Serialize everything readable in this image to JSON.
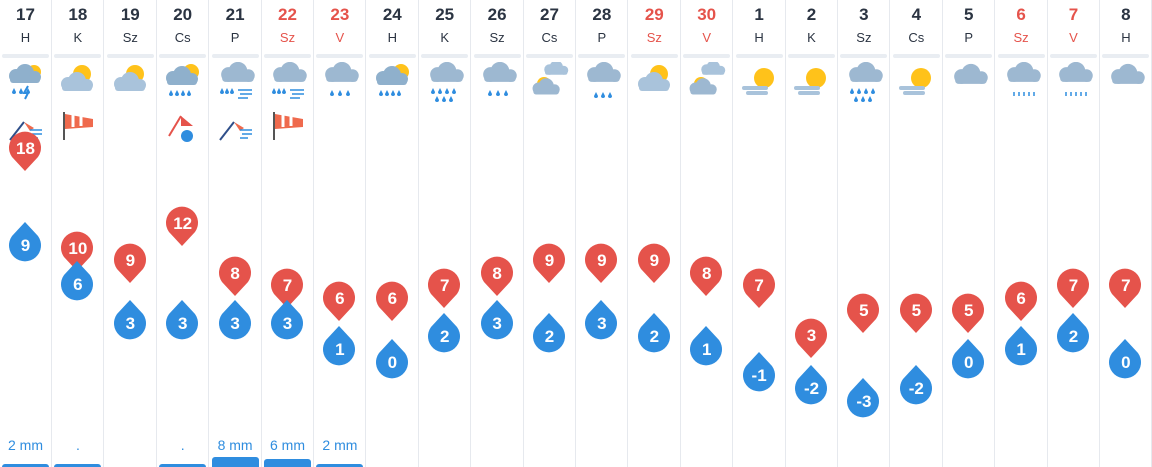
{
  "app": {
    "colors": {
      "high": "#e5534b",
      "low": "#2f8ddf",
      "weekend": "#e5534b",
      "text": "#2b3442"
    }
  },
  "days": [
    {
      "num": "17",
      "name": "H",
      "weekend": false,
      "icon": "thunderstorm-rain",
      "wind": "windsock-strong-wind-icon",
      "high": "18",
      "low": "9",
      "precip": "2 mm",
      "bar": 0.15
    },
    {
      "num": "18",
      "name": "K",
      "weekend": false,
      "icon": "partly-sunny",
      "wind": "windsock-icon",
      "high": "10",
      "low": "6",
      "precip": ".",
      "bar": 0.15
    },
    {
      "num": "19",
      "name": "Sz",
      "weekend": false,
      "icon": "partly-sunny",
      "wind": "",
      "high": "9",
      "low": "3",
      "precip": "",
      "bar": 0
    },
    {
      "num": "20",
      "name": "Cs",
      "weekend": false,
      "icon": "sun-rain",
      "wind": "wind-warning-icon",
      "high": "12",
      "low": "3",
      "precip": ".",
      "bar": 0.15
    },
    {
      "num": "21",
      "name": "P",
      "weekend": false,
      "icon": "rain-wind",
      "wind": "windsock-strong-wind-icon",
      "high": "8",
      "low": "3",
      "precip": "8 mm",
      "bar": 0.45
    },
    {
      "num": "22",
      "name": "Sz",
      "weekend": true,
      "icon": "rain-wind",
      "wind": "windsock-icon",
      "high": "7",
      "low": "3",
      "precip": "6 mm",
      "bar": 0.35
    },
    {
      "num": "23",
      "name": "V",
      "weekend": true,
      "icon": "rain",
      "wind": "",
      "high": "6",
      "low": "1",
      "precip": "2 mm",
      "bar": 0.15
    },
    {
      "num": "24",
      "name": "H",
      "weekend": false,
      "icon": "sun-rain",
      "wind": "",
      "high": "6",
      "low": "0",
      "precip": "",
      "bar": 0
    },
    {
      "num": "25",
      "name": "K",
      "weekend": false,
      "icon": "heavy-rain",
      "wind": "",
      "high": "7",
      "low": "2",
      "precip": "",
      "bar": 0
    },
    {
      "num": "26",
      "name": "Sz",
      "weekend": false,
      "icon": "rain",
      "wind": "",
      "high": "8",
      "low": "3",
      "precip": "",
      "bar": 0
    },
    {
      "num": "27",
      "name": "Cs",
      "weekend": false,
      "icon": "mixed-clouds",
      "wind": "",
      "high": "9",
      "low": "2",
      "precip": "",
      "bar": 0
    },
    {
      "num": "28",
      "name": "P",
      "weekend": false,
      "icon": "light-rain",
      "wind": "",
      "high": "9",
      "low": "3",
      "precip": "",
      "bar": 0
    },
    {
      "num": "29",
      "name": "Sz",
      "weekend": true,
      "icon": "partly-sunny",
      "wind": "",
      "high": "9",
      "low": "2",
      "precip": "",
      "bar": 0
    },
    {
      "num": "30",
      "name": "V",
      "weekend": true,
      "icon": "mixed-clouds",
      "wind": "",
      "high": "8",
      "low": "1",
      "precip": "",
      "bar": 0
    },
    {
      "num": "1",
      "name": "H",
      "weekend": false,
      "icon": "sunny-haze",
      "wind": "",
      "high": "7",
      "low": "-1",
      "precip": "",
      "bar": 0
    },
    {
      "num": "2",
      "name": "K",
      "weekend": false,
      "icon": "sunny-haze",
      "wind": "",
      "high": "3",
      "low": "-2",
      "precip": "",
      "bar": 0
    },
    {
      "num": "3",
      "name": "Sz",
      "weekend": false,
      "icon": "heavy-rain",
      "wind": "",
      "high": "5",
      "low": "-3",
      "precip": "",
      "bar": 0
    },
    {
      "num": "4",
      "name": "Cs",
      "weekend": false,
      "icon": "sunny-haze",
      "wind": "",
      "high": "5",
      "low": "-2",
      "precip": "",
      "bar": 0
    },
    {
      "num": "5",
      "name": "P",
      "weekend": false,
      "icon": "cloudy",
      "wind": "",
      "high": "5",
      "low": "0",
      "precip": "",
      "bar": 0
    },
    {
      "num": "6",
      "name": "Sz",
      "weekend": true,
      "icon": "drizzle",
      "wind": "",
      "high": "6",
      "low": "1",
      "precip": "",
      "bar": 0
    },
    {
      "num": "7",
      "name": "V",
      "weekend": true,
      "icon": "drizzle",
      "wind": "",
      "high": "7",
      "low": "2",
      "precip": "",
      "bar": 0
    },
    {
      "num": "8",
      "name": "H",
      "weekend": false,
      "icon": "cloudy",
      "wind": "",
      "high": "7",
      "low": "0",
      "precip": "",
      "bar": 0
    }
  ]
}
